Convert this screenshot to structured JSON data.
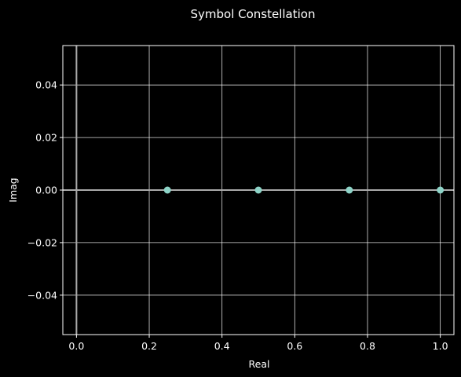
{
  "chart_data": {
    "type": "scatter",
    "title": "Symbol Constellation",
    "xlabel": "Real",
    "ylabel": "Imag",
    "xlim": [
      -0.0375,
      1.0375
    ],
    "ylim": [
      -0.055,
      0.055
    ],
    "xticks": [
      0.0,
      0.2,
      0.4,
      0.6,
      0.8,
      1.0
    ],
    "xtick_labels": [
      "0.0",
      "0.2",
      "0.4",
      "0.6",
      "0.8",
      "1.0"
    ],
    "yticks": [
      -0.04,
      -0.02,
      0.0,
      0.02,
      0.04
    ],
    "ytick_labels": [
      "−0.04",
      "−0.02",
      "0.00",
      "0.02",
      "0.04"
    ],
    "grid": true,
    "reference_lines": {
      "horizontal_at": 0,
      "vertical_at": 0
    },
    "series": [
      {
        "points": [
          {
            "x": 0.25,
            "y": 0.0
          },
          {
            "x": 0.5,
            "y": 0.0
          },
          {
            "x": 0.75,
            "y": 0.0
          },
          {
            "x": 1.0,
            "y": 0.0
          }
        ]
      }
    ],
    "colors": {
      "background": "#000000",
      "axes": "#ffffff",
      "grid": "#ffffff",
      "reference_line": "#aaaaaa",
      "marker": "#8dd3c7"
    }
  }
}
